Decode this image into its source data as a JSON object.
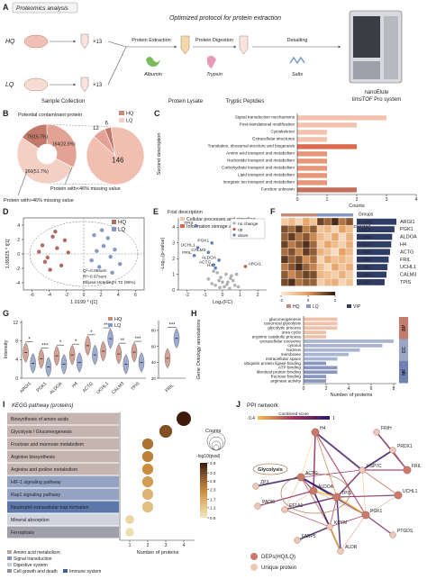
{
  "a": {
    "letter": "A",
    "title": "Proteomics analysis",
    "protocol": "Optimized protocol for protein extraction",
    "hq": "HQ",
    "lq": "LQ",
    "times": "×13",
    "steps": [
      "Protein Extraction",
      "Protein Digestion",
      "Desalting"
    ],
    "reagents": [
      "Albumin",
      "Trypsin",
      "Salts"
    ],
    "stages": [
      "Sample Collection",
      "Protein Lysate",
      "Tryptic Peptdies"
    ],
    "instrument": [
      "nanoElute",
      "timsTOF Pro system"
    ]
  },
  "b": {
    "letter": "B",
    "title": "Potential contaminant protein",
    "legend": [
      "HQ",
      "LQ"
    ],
    "legend_colors": [
      "#c98a7a",
      "#f3cfc4"
    ],
    "donut": {
      "type": "pie",
      "values": [
        164,
        260,
        79
      ],
      "value_labels": [
        "164(32.6%)",
        "260(51.7%)",
        "79(15.7%)"
      ],
      "colors": [
        "#e3a293",
        "#f4cfc4",
        "#c2796b"
      ]
    },
    "pie": {
      "type": "pie",
      "values": [
        6,
        146,
        12
      ],
      "colors": [
        "#c2796b",
        "#f0bfb2",
        "#e3a293"
      ]
    },
    "notes": [
      "Protein with<46% missing value",
      "Protein with>46% missing value"
    ]
  },
  "c": {
    "letter": "C",
    "type": "bar",
    "categories": [
      "Signal transduction mechanisms",
      "Post-translational modification",
      "Cytoskeleton",
      "Extracellular structures",
      "Translation, ribosomal structure and biogenesis",
      "Amino acid transport and metabolism",
      "Nucleotide transport and metabolism",
      "Carbohydrate transport and metabolism",
      "Lipid transport and metabolism",
      "Inorganic ion transport and metabolism",
      "Function unknown"
    ],
    "values": [
      3,
      2,
      1,
      1,
      2,
      1,
      1,
      1,
      1,
      1,
      2
    ],
    "groups": [
      0,
      0,
      0,
      0,
      1,
      2,
      2,
      2,
      2,
      2,
      3
    ],
    "xlim": [
      0,
      4
    ],
    "xticks": [
      0,
      1,
      2,
      3,
      4
    ],
    "xlabel": "Counts",
    "ylabel": "Second description",
    "legend_title": "Frist description",
    "legend": [
      "Cellular processes and signaling",
      "Information storage and processing",
      "Metabolism",
      "Poorly characterized"
    ],
    "colors": [
      "#f2c4ae",
      "#dd6a4c",
      "#e9957a",
      "#c4705c"
    ]
  },
  "d": {
    "letter": "D",
    "type": "scatter",
    "series": [
      {
        "name": "HQ",
        "color": "#b06a62",
        "x": [
          -4.8,
          -4.2,
          -3.6,
          -3.1,
          -2.6,
          -5.2,
          -3.9,
          -2.2,
          -4.5,
          -1.8,
          -3.3
        ],
        "y": [
          1.2,
          -0.5,
          2.4,
          0.8,
          -1.6,
          0.3,
          -2.2,
          1.9,
          -1.1,
          0.2,
          3.1
        ]
      },
      {
        "name": "LQ",
        "color": "#8497c6",
        "x": [
          1.2,
          2.3,
          3.1,
          1.8,
          2.8,
          3.6,
          0.9,
          2.1,
          4.2,
          1.5,
          3.3
        ],
        "y": [
          2.6,
          1.1,
          -0.4,
          -1.8,
          2.2,
          0.6,
          -0.9,
          3.3,
          -1.4,
          0.4,
          -2.6
        ]
      }
    ],
    "xlim": [
      -7,
      7
    ],
    "xticks": [
      -6,
      -4,
      -2,
      0,
      2,
      4,
      6
    ],
    "ylim": [
      -5,
      5
    ],
    "yticks": [
      -4,
      -2,
      0,
      2,
      4
    ],
    "xlabel": "1.0199 * t[1]",
    "ylabel": "1.06825 * t[1]",
    "notes": [
      "Q²=0.58sum",
      "R²=0.97sum",
      "Ellipse:Hotelling's T2 (95%)"
    ]
  },
  "e": {
    "letter": "E",
    "type": "scatter",
    "series": [
      {
        "name": "no change",
        "color": "#b0b0b0",
        "x": [
          -0.4,
          -0.2,
          0.1,
          0.3,
          0.5,
          -0.6,
          0.2,
          -0.1,
          0.4,
          0.7,
          -0.3,
          0.0,
          0.6,
          -0.8,
          0.9,
          -0.5,
          0.25,
          -0.15,
          0.45,
          0.8
        ],
        "y": [
          0.3,
          0.6,
          0.2,
          0.5,
          0.9,
          0.4,
          1.0,
          0.8,
          0.1,
          0.3,
          1.1,
          0.5,
          0.6,
          0.7,
          0.2,
          1.2,
          0.35,
          0.15,
          0.75,
          1.0
        ]
      },
      {
        "name": "up",
        "color": "#c4574a",
        "x": [
          1.3
        ],
        "y": [
          1.5
        ],
        "point_labels": [
          "ARGI1"
        ]
      },
      {
        "name": "down",
        "color": "#5f7fc0",
        "x": [
          -1.5,
          -0.6,
          -1.4,
          -0.8,
          -1.6,
          -0.2,
          -0.5,
          -0.4
        ],
        "y": [
          4.1,
          3.0,
          2.7,
          2.4,
          2.2,
          1.9,
          1.6,
          1.4
        ],
        "point_labels": [
          "TPIS",
          "PGK1",
          "UCHL1",
          "CALM3",
          "FRIL",
          "ALDOA",
          "ACTG",
          "H4"
        ]
      }
    ],
    "xlim": [
      -2.5,
      2.5
    ],
    "xticks": [
      -2,
      -1,
      0,
      1,
      2
    ],
    "ylim": [
      0,
      4.6
    ],
    "yticks": [
      0,
      1,
      2,
      3,
      4
    ],
    "xlabel": "Log₂(FC)",
    "ylabel": "-Log₁₀(p-value)"
  },
  "f": {
    "letter": "F",
    "type": "heatmap",
    "rows": [
      "ARGI1",
      "PGK1",
      "ALDOA",
      "H4",
      "ACTG",
      "FRIL",
      "UCHL1",
      "CALM3",
      "TPIS"
    ],
    "vip": [
      1.55648,
      1.48132,
      1.39024,
      1.35477,
      1.30698,
      1.25383,
      1.20512,
      1.16825,
      1.09373
    ],
    "matrix": [
      [
        -1.2,
        -0.8,
        -1.5,
        -0.3,
        -1.0,
        1.4,
        0.9,
        1.8,
        0.6,
        1.1
      ],
      [
        1.2,
        0.8,
        1.6,
        0.4,
        1.0,
        -1.1,
        -0.7,
        -1.5,
        -0.2,
        -0.9
      ],
      [
        0.9,
        1.5,
        0.6,
        1.1,
        0.3,
        -0.8,
        -1.3,
        -0.4,
        -1.6,
        -0.6
      ],
      [
        1.4,
        0.5,
        1.0,
        1.7,
        0.8,
        -1.2,
        -0.3,
        -0.9,
        -1.4,
        -0.5
      ],
      [
        0.7,
        1.2,
        0.3,
        1.5,
        1.0,
        -0.6,
        -1.1,
        -1.7,
        -0.2,
        -0.8
      ],
      [
        1.6,
        0.9,
        1.3,
        0.2,
        0.7,
        -1.5,
        -0.4,
        -1.0,
        -0.7,
        -1.2
      ],
      [
        0.5,
        1.1,
        1.8,
        0.9,
        0.4,
        -0.9,
        -1.6,
        -0.3,
        -1.1,
        -0.5
      ],
      [
        1.0,
        0.3,
        0.8,
        1.4,
        1.2,
        -0.7,
        -1.0,
        -1.4,
        -0.6,
        -1.3
      ],
      [
        1.3,
        1.7,
        0.6,
        1.0,
        0.9,
        -1.3,
        -0.8,
        -0.5,
        -1.5,
        -1.0
      ]
    ],
    "column_groups": [
      0,
      0,
      0,
      0,
      0,
      1,
      1,
      1,
      1,
      1
    ],
    "groups_title": "Groups",
    "legend": [
      "HQ",
      "LQ"
    ],
    "legend_colors": [
      "#c98a7a",
      "#8497c6"
    ],
    "vip_label": "VIP",
    "vip_color": "#2f3d66",
    "clim": [
      -2,
      2
    ],
    "cticks": [
      -2,
      0,
      2
    ],
    "colorscale": [
      "#fbe9d2",
      "#e59a5a",
      "#3a1d10"
    ]
  },
  "g": {
    "letter": "G",
    "type": "violin",
    "genes": [
      "ARGI1",
      "PGK1",
      "ALDOA",
      "H4",
      "ACTG",
      "UCHL1",
      "CALM3",
      "TPIS"
    ],
    "series": [
      {
        "name": "HQ",
        "color": "#c98a7a",
        "values": [
          5.5,
          4.2,
          4.8,
          5.0,
          7.0,
          5.8,
          5.2,
          5.6
        ]
      },
      {
        "name": "LQ",
        "color": "#8497c6",
        "values": [
          3.2,
          2.4,
          3.0,
          3.4,
          5.0,
          8.5,
          3.0,
          3.4
        ]
      }
    ],
    "sig": [
      "*",
      "***",
      "*",
      "*",
      "*",
      "***",
      "**",
      "***"
    ],
    "ylim": [
      0,
      12
    ],
    "yticks": [
      0,
      4,
      8,
      12
    ],
    "ylabel": "Intensity",
    "fril": {
      "gene": "FRIL",
      "values": [
        45,
        70
      ],
      "sig": "***",
      "ylim": [
        20,
        90
      ],
      "yticks": [
        20,
        40,
        60,
        80
      ]
    }
  },
  "h": {
    "letter": "H",
    "type": "bar",
    "categories": [
      "gluconeogenesis",
      "canonical glycolysis",
      "glycolytic process",
      "urea cycle",
      "arginine catabolic process",
      "extracellular exosome",
      "cytosol",
      "nucleus",
      "membrane",
      "extracellular space",
      "ubiquitin protein ligase binding",
      "ATP binding",
      "identical protein binding",
      "fructose binding",
      "arginase activity"
    ],
    "values": [
      3,
      3,
      3,
      2,
      2,
      8,
      7,
      5,
      4,
      3,
      2,
      3,
      3,
      2,
      2
    ],
    "groups": [
      0,
      0,
      0,
      0,
      0,
      1,
      1,
      1,
      1,
      1,
      2,
      2,
      2,
      2,
      2
    ],
    "group_labels": [
      "BP",
      "CC",
      "MF"
    ],
    "group_colors": [
      "#c67c6c",
      "#9aa6c6",
      "#7180b4"
    ],
    "bar_colors": [
      "#f0c0a8",
      "#a9b4d0",
      "#8996c0"
    ],
    "xlim": [
      0,
      8
    ],
    "xticks": [
      0,
      2,
      4,
      6,
      8
    ],
    "xlabel": "Number of proteins",
    "ylabel": "Gene Ontology annotations"
  },
  "i": {
    "letter": "I",
    "title": "KEGG pathway (proteins)",
    "type": "bubble",
    "categories": [
      "Biosynthesis of amino acids",
      "Glycolysis / Gluconeogenesis",
      "Fructose and mannose metabolism",
      "Arginine biosynthesis",
      "Arginine and proline metabolism",
      "HIF-1 signaling pathway",
      "Rap1 signaling pathway",
      "Neutrophil extracellular trap formation",
      "Mineral absorption",
      "Ferroptosis"
    ],
    "values": [
      4,
      3,
      2,
      2,
      2,
      2,
      2,
      2,
      1,
      1
    ],
    "pvals": [
      3.9,
      3.1,
      2.6,
      2.4,
      2.2,
      1.9,
      1.5,
      1.3,
      0.9,
      0.7
    ],
    "classes": [
      0,
      0,
      0,
      0,
      0,
      1,
      1,
      4,
      2,
      3
    ],
    "class_labels": [
      "Amino acid metabolism",
      "Signal transduction",
      "Digestive system",
      "Cell growth and death",
      "Immune system"
    ],
    "class_colors": [
      "#bba7a1",
      "#8193b8",
      "#c9cdd9",
      "#8f8f9b",
      "#3f5f9a"
    ],
    "xlim": [
      0.5,
      4.5
    ],
    "xticks": [
      1,
      2,
      3,
      4
    ],
    "xlabel": "Number of proteins",
    "size_title": "Counts",
    "color_title": "-log10(pval)",
    "clim": [
      0.6,
      3.9
    ],
    "cticks": [
      3.9,
      3.3,
      2.8,
      2.3,
      1.7,
      1.2,
      0.6
    ],
    "colorscale": [
      "#f3e4b5",
      "#c98a3c",
      "#3d1c0c"
    ]
  },
  "j": {
    "letter": "J",
    "title": "PPI network",
    "score_ends": [
      0.4,
      1
    ],
    "score_label": "Combined score",
    "cluster_label": "Glycolysis",
    "nodes": [
      {
        "label": "H4",
        "kind": 0
      },
      {
        "label": "FRIH",
        "kind": 1
      },
      {
        "label": "PRDX1",
        "kind": 1
      },
      {
        "label": "FRIL",
        "kind": 0
      },
      {
        "label": "HSP7C",
        "kind": 1
      },
      {
        "label": "ZP3",
        "kind": 1
      },
      {
        "label": "ACTG",
        "kind": 0
      },
      {
        "label": "PADI6",
        "kind": 1
      },
      {
        "label": "EF1A1",
        "kind": 1
      },
      {
        "label": "ALDOA",
        "kind": 0
      },
      {
        "label": "TPIS",
        "kind": 0
      },
      {
        "label": "UCHL1",
        "kind": 0
      },
      {
        "label": "FABP5",
        "kind": 1
      },
      {
        "label": "KPYM",
        "kind": 1
      },
      {
        "label": "PGK1",
        "kind": 0
      },
      {
        "label": "PTGDS",
        "kind": 1
      },
      {
        "label": "ALDR",
        "kind": 1
      }
    ],
    "legend": [
      "DEPs(HQ/LQ)",
      "Unique protein"
    ],
    "kind_colors": [
      "#c97a6a",
      "#efc9b7"
    ]
  }
}
